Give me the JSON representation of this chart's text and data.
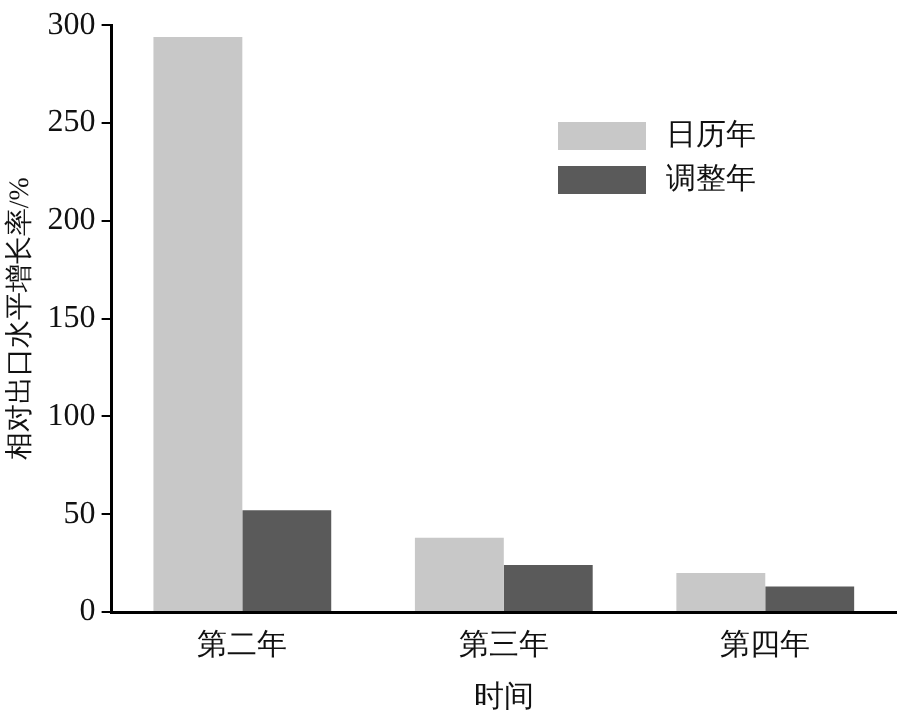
{
  "chart_data": {
    "type": "bar",
    "xlabel": "时间",
    "ylabel": "相对出口水平增长率/%",
    "categories": [
      "第二年",
      "第三年",
      "第四年"
    ],
    "series": [
      {
        "name": "日历年",
        "color": "#c8c8c8",
        "values": [
          294,
          38,
          20
        ]
      },
      {
        "name": "调整年",
        "color": "#5a5a5a",
        "values": [
          52,
          24,
          13
        ]
      }
    ],
    "ylim": [
      0,
      300
    ],
    "yticks": [
      0,
      50,
      100,
      150,
      200,
      250,
      300
    ],
    "grid": false,
    "legend": "top right"
  }
}
